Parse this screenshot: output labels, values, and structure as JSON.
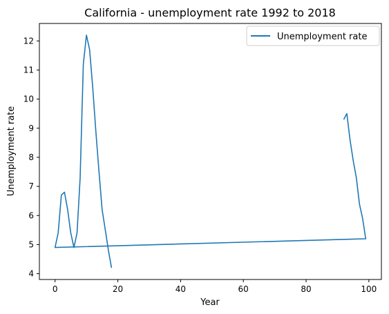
{
  "chart_data": {
    "type": "line",
    "title": "California - unemployment rate 1992 to 2018",
    "xlabel": "Year",
    "ylabel": "Unemployment rate",
    "xlim": [
      -5,
      104
    ],
    "ylim": [
      3.8,
      12.6
    ],
    "xticks": [
      0,
      20,
      40,
      60,
      80,
      100
    ],
    "yticks": [
      4,
      5,
      6,
      7,
      8,
      9,
      10,
      11,
      12
    ],
    "grid": false,
    "legend": {
      "placement": "top-right"
    },
    "series": [
      {
        "name": "Unemployment rate",
        "color": "#1f77b4",
        "x": [
          92,
          93,
          94,
          95,
          96,
          97,
          98,
          99,
          0,
          1,
          2,
          3,
          4,
          5,
          6,
          7,
          8,
          9,
          10,
          11,
          12,
          13,
          14,
          15,
          16,
          17,
          18
        ],
        "y": [
          9.3,
          9.5,
          8.6,
          7.9,
          7.3,
          6.4,
          5.9,
          5.2,
          4.9,
          5.4,
          6.7,
          6.8,
          6.2,
          5.4,
          4.9,
          5.4,
          7.3,
          11.2,
          12.2,
          11.7,
          10.4,
          8.9,
          7.5,
          6.2,
          5.5,
          4.8,
          4.2
        ]
      }
    ]
  }
}
